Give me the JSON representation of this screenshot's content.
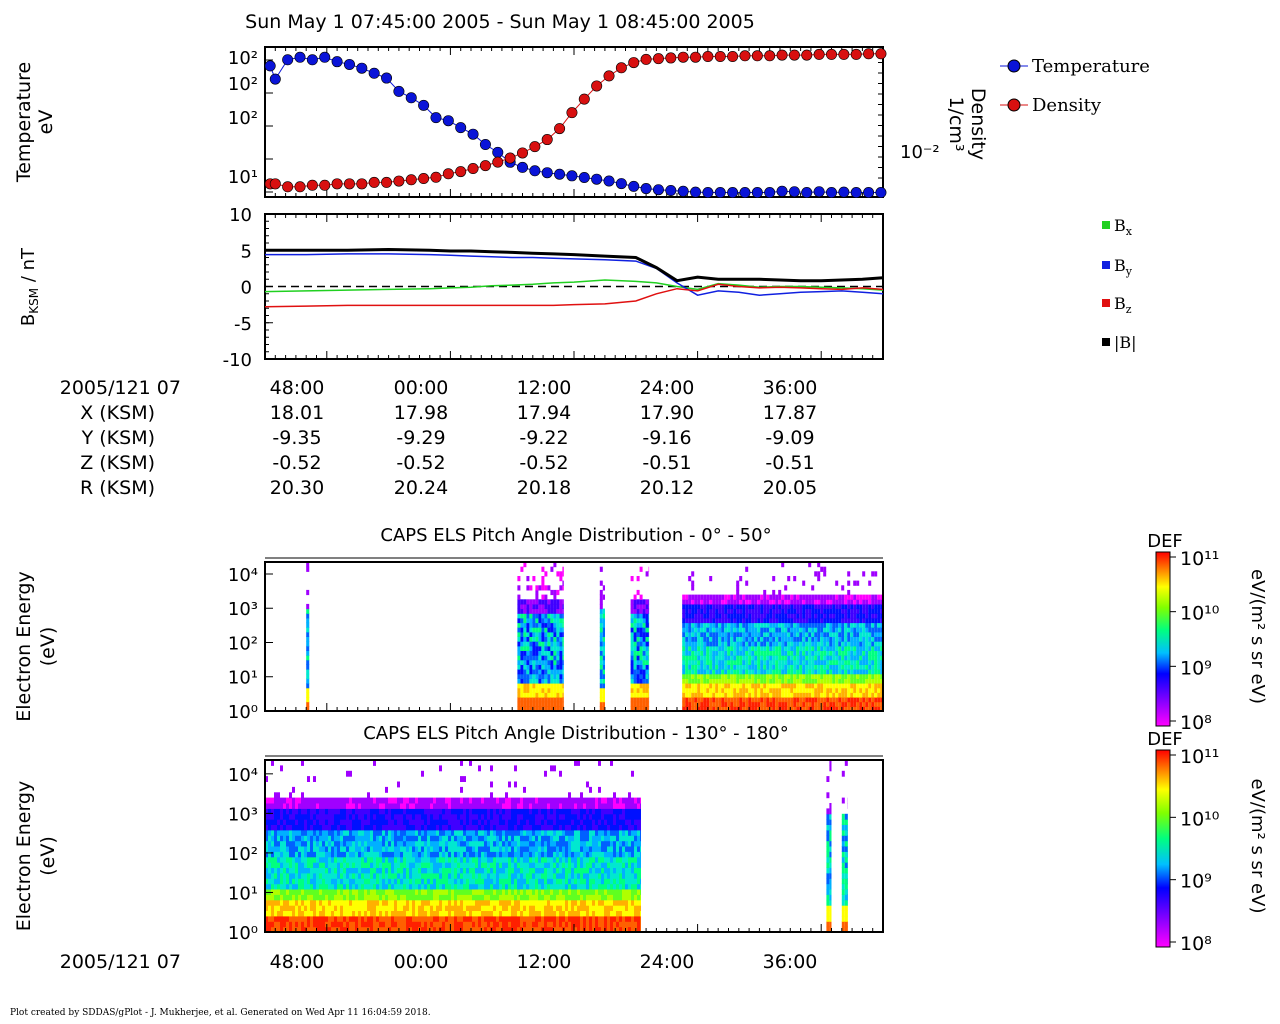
{
  "title": "Sun May 1 07:45:00 2005 - Sun May 1 08:45:00 2005",
  "footer": "Plot created by SDDAS/gPlot - J. Mukherjee, et al.  Generated on Wed Apr 11 16:04:59 2018.",
  "colors": {
    "temperature": "#0a14d8",
    "density": "#d81010",
    "bx": "#20d020",
    "by": "#1020e0",
    "bz": "#e01010",
    "bmag": "#000000"
  },
  "chart_data": [
    {
      "type": "scatter",
      "ylabel": [
        "Temperature",
        "eV"
      ],
      "y2label": [
        "Density",
        "1/cm³"
      ],
      "yscale": "log",
      "y_ticks": [
        "10²",
        "10²",
        "10²",
        "10¹"
      ],
      "y2_ticks": [
        "10⁻²"
      ],
      "legend": [
        "Temperature",
        "Density"
      ],
      "legend_position": "right",
      "x": [
        0.5,
        1,
        2.2,
        3.4,
        4.6,
        5.8,
        7,
        8.2,
        9.4,
        10.6,
        11.8,
        13,
        14.2,
        15.4,
        16.6,
        17.8,
        19,
        20.2,
        21.4,
        22.6,
        23.8,
        25,
        26.2,
        27.4,
        28.6,
        29.8,
        31,
        32.2,
        33.4,
        34.6,
        35.8,
        37,
        38.2,
        39.4,
        40.6,
        41.8,
        43,
        44.2,
        45.4,
        46.6,
        47.8,
        49,
        50.2,
        51.4,
        52.6,
        53.8,
        55,
        56.2,
        57.4,
        58.6,
        59.8
      ],
      "series": [
        {
          "name": "Temperature",
          "values": [
            255,
            180,
            300,
            320,
            300,
            320,
            285,
            265,
            240,
            210,
            185,
            130,
            110,
            90,
            65,
            60,
            50,
            42,
            32,
            26,
            20,
            17.5,
            16,
            15.2,
            14.6,
            14,
            13.4,
            12.8,
            12.2,
            11.4,
            10.6,
            10,
            9.7,
            9.5,
            9.3,
            9.1,
            9,
            9,
            9,
            9,
            9,
            9,
            9.3,
            9.2,
            9,
            9.2,
            9,
            9.1,
            9,
            9,
            9
          ]
        },
        {
          "name": "Density",
          "values": [
            0.003,
            0.003,
            0.0028,
            0.0028,
            0.0029,
            0.0029,
            0.003,
            0.003,
            0.003,
            0.0031,
            0.0031,
            0.0032,
            0.0033,
            0.0034,
            0.0035,
            0.0038,
            0.004,
            0.0043,
            0.0046,
            0.005,
            0.0055,
            0.0062,
            0.0072,
            0.0085,
            0.011,
            0.016,
            0.022,
            0.03,
            0.038,
            0.046,
            0.052,
            0.056,
            0.057,
            0.058,
            0.059,
            0.059,
            0.06,
            0.06,
            0.06,
            0.061,
            0.061,
            0.061,
            0.062,
            0.062,
            0.062,
            0.063,
            0.063,
            0.063,
            0.063,
            0.064,
            0.064
          ]
        }
      ]
    },
    {
      "type": "line",
      "ylabel": "B_KSM / nT",
      "ylim": [
        -10,
        10
      ],
      "y_ticks": [
        "10",
        "5",
        "0",
        "-5",
        "-10"
      ],
      "legend": [
        "Bx",
        "By",
        "Bz",
        "|B|"
      ],
      "legend_position": "right",
      "x": [
        0,
        4,
        8,
        12,
        16,
        18,
        20,
        22,
        24,
        26,
        28,
        30,
        33,
        36,
        38,
        40,
        42,
        44,
        46,
        48,
        50,
        52,
        54,
        56,
        58,
        60
      ],
      "series": [
        {
          "name": "Bx",
          "values": [
            -0.7,
            -0.6,
            -0.5,
            -0.4,
            -0.3,
            -0.2,
            -0.1,
            0.1,
            0.2,
            0.3,
            0.5,
            0.6,
            0.9,
            0.7,
            0.5,
            0.0,
            -0.4,
            0.4,
            0.2,
            -0.1,
            0.0,
            0.0,
            -0.1,
            -0.2,
            -0.3,
            -0.5
          ]
        },
        {
          "name": "By",
          "values": [
            4.4,
            4.4,
            4.5,
            4.5,
            4.4,
            4.3,
            4.2,
            4.1,
            4.0,
            4.0,
            3.9,
            3.8,
            3.7,
            3.5,
            2.5,
            0.5,
            -1.2,
            -0.6,
            -0.8,
            -1.2,
            -1.0,
            -0.8,
            -0.7,
            -0.6,
            -0.8,
            -1.0
          ]
        },
        {
          "name": "Bz",
          "values": [
            -2.8,
            -2.7,
            -2.6,
            -2.6,
            -2.6,
            -2.6,
            -2.6,
            -2.6,
            -2.6,
            -2.6,
            -2.6,
            -2.5,
            -2.4,
            -2.0,
            -1.0,
            -0.3,
            -0.6,
            0.3,
            0.0,
            -0.2,
            -0.1,
            -0.2,
            -0.3,
            -0.4,
            -0.2,
            -0.4
          ]
        },
        {
          "name": "|B|",
          "values": [
            5.0,
            5.0,
            5.0,
            5.1,
            5.0,
            4.9,
            4.9,
            4.8,
            4.7,
            4.6,
            4.5,
            4.4,
            4.2,
            4.0,
            2.6,
            0.8,
            1.3,
            1.0,
            1.0,
            1.0,
            0.9,
            0.8,
            0.8,
            0.9,
            1.0,
            1.2
          ]
        }
      ]
    },
    {
      "type": "table",
      "title": "ephemeris",
      "row_labels": [
        "2005/121 07",
        "X (KSM)",
        "Y (KSM)",
        "Z (KSM)",
        "R (KSM)"
      ],
      "columns": [
        [
          "48:00",
          "18.01",
          "-9.35",
          "-0.52",
          "20.30"
        ],
        [
          "00:00",
          "17.98",
          "-9.29",
          "-0.52",
          "20.24"
        ],
        [
          "12:00",
          "17.94",
          "-9.22",
          "-0.52",
          "20.18"
        ],
        [
          "24:00",
          "17.90",
          "-9.16",
          "-0.51",
          "20.12"
        ],
        [
          "36:00",
          "17.87",
          "-9.09",
          "-0.51",
          "20.05"
        ]
      ]
    },
    {
      "type": "heatmap",
      "title": "CAPS ELS Pitch Angle Distribution - 0° - 50°",
      "ylabel": [
        "Electron Energy",
        "(eV)"
      ],
      "yscale": "log",
      "y_ticks": [
        "10⁴",
        "10³",
        "10²",
        "10¹",
        "10⁰"
      ],
      "colorbar": {
        "label": "DEF",
        "unit": "eV/(m² s sr eV)",
        "ticks": [
          "10¹¹",
          "10¹⁰",
          "10⁹",
          "10⁸"
        ]
      },
      "intervals_minutes": [
        [
          4.0,
          4.3
        ],
        [
          24.5,
          29.0
        ],
        [
          32.5,
          33.0
        ],
        [
          35.5,
          37.3
        ],
        [
          40.5,
          60.0
        ]
      ],
      "level_profiles": [
        "sparse",
        "mixed",
        "sparse",
        "mixed",
        "full"
      ]
    },
    {
      "type": "heatmap",
      "title": "CAPS ELS Pitch Angle Distribution - 130° - 180°",
      "ylabel": [
        "Electron Energy",
        "(eV)"
      ],
      "yscale": "log",
      "y_ticks": [
        "10⁴",
        "10³",
        "10²",
        "10¹",
        "10⁰"
      ],
      "colorbar": {
        "label": "DEF",
        "unit": "eV/(m² s sr eV)",
        "ticks": [
          "10¹¹",
          "10¹⁰",
          "10⁹",
          "10⁸"
        ]
      },
      "intervals_minutes": [
        [
          0.0,
          36.5
        ],
        [
          54.5,
          55.0
        ],
        [
          56.0,
          56.6
        ]
      ],
      "level_profiles": [
        "full",
        "sparse",
        "sparse"
      ],
      "x_ticks": [
        "48:00",
        "00:00",
        "12:00",
        "24:00",
        "36:00"
      ],
      "x_row_label": "2005/121 07"
    }
  ]
}
